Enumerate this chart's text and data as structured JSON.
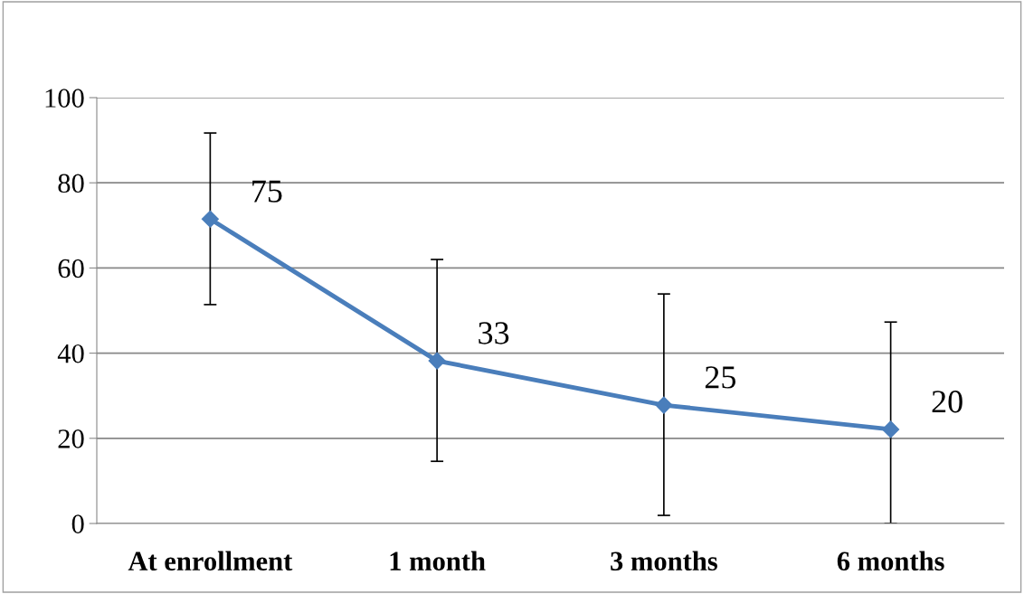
{
  "chart_data": {
    "type": "line",
    "categories": [
      "At enrollment",
      "1 month",
      "3 months",
      "6 months"
    ],
    "series": [
      {
        "color": "#4a7ebb",
        "values": [
          71.5,
          38.2,
          27.8,
          22.1
        ],
        "errors": [
          [
            51.4,
            91.7
          ],
          [
            14.6,
            62.0
          ],
          [
            1.9,
            53.9
          ],
          [
            0,
            47.3
          ]
        ]
      }
    ],
    "annotations": [
      "75",
      "33",
      "25",
      "20"
    ],
    "ylim": [
      0,
      100
    ],
    "yticks": [
      0,
      20,
      40,
      60,
      80,
      100
    ],
    "grid": "y",
    "marker": "diamond",
    "line_style": "solid"
  }
}
